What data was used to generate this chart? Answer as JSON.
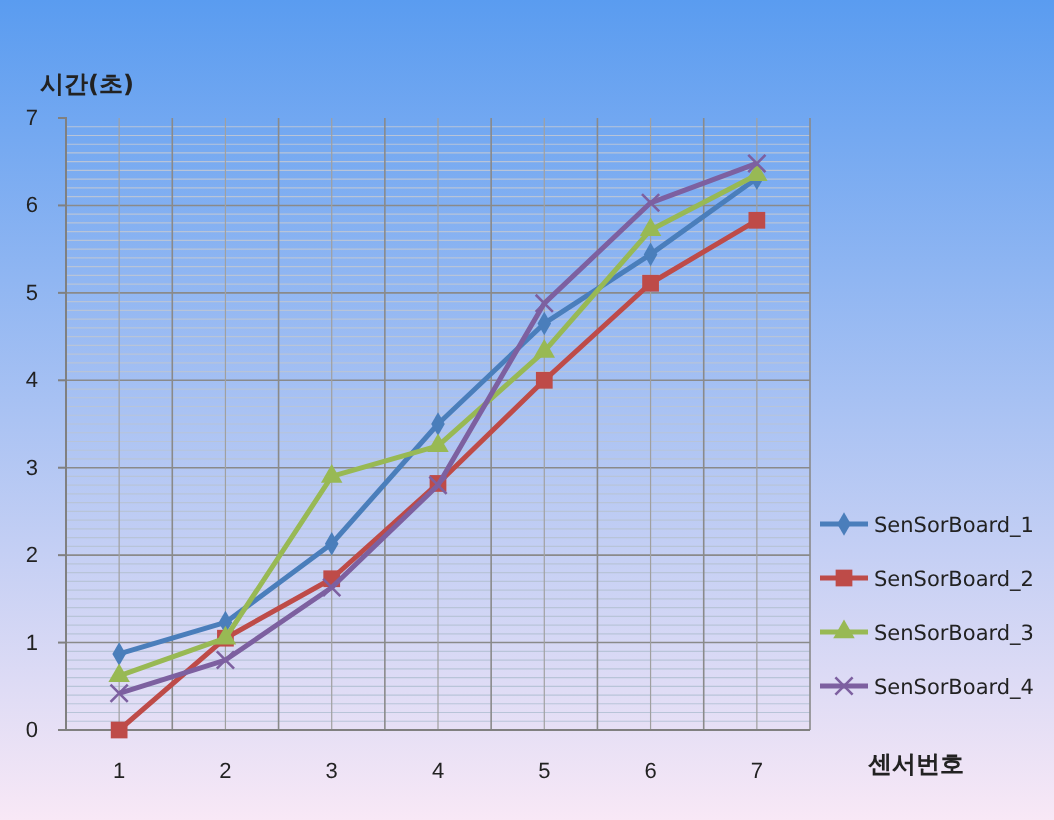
{
  "chart_data": {
    "type": "line",
    "xlabel": "센서번호",
    "ylabel": "시간(초)",
    "categories": [
      "1",
      "2",
      "3",
      "4",
      "5",
      "6",
      "7"
    ],
    "series": [
      {
        "name": "SenSorBoard_1",
        "color": "#4a7ebb",
        "marker": "diamond",
        "values": [
          0.87,
          1.23,
          2.13,
          3.5,
          4.65,
          5.44,
          6.31
        ]
      },
      {
        "name": "SenSorBoard_2",
        "color": "#be4b48",
        "marker": "square",
        "values": [
          0,
          1.05,
          1.73,
          2.82,
          4.0,
          5.11,
          5.83
        ]
      },
      {
        "name": "SenSorBoard_3",
        "color": "#98b954",
        "marker": "triangle",
        "values": [
          0.62,
          1.05,
          2.9,
          3.25,
          4.33,
          5.72,
          6.35
        ]
      },
      {
        "name": "SenSorBoard_4",
        "color": "#7d60a0",
        "marker": "cross",
        "values": [
          0.42,
          0.8,
          1.63,
          2.8,
          4.88,
          6.03,
          6.48
        ]
      }
    ],
    "ylim": [
      0,
      7
    ],
    "yticks": [
      0,
      1,
      2,
      3,
      4,
      5,
      6,
      7
    ],
    "grid": true,
    "legend": "right",
    "line_style": "solid"
  }
}
